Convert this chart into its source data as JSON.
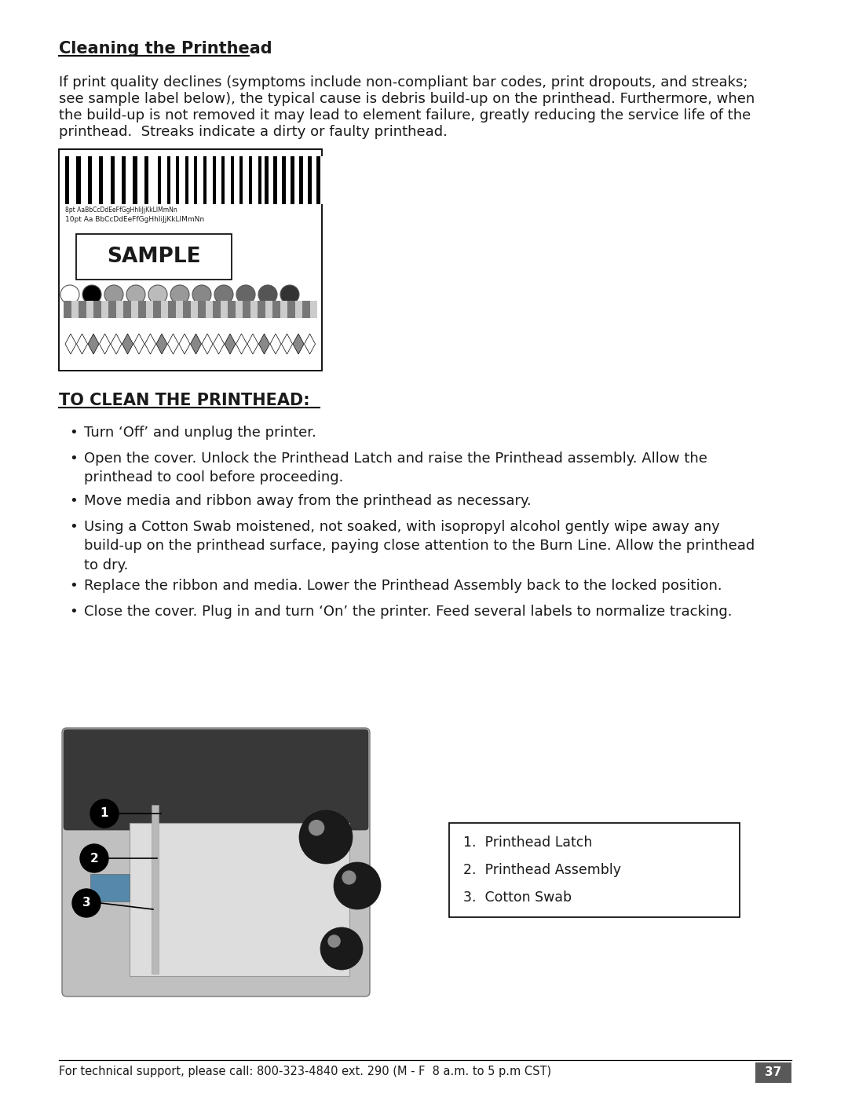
{
  "title": "Cleaning the Printhead",
  "body_text_lines": [
    "If print quality declines (symptoms include non-compliant bar codes, print dropouts, and streaks;",
    "see sample label below), the typical cause is debris build-up on the printhead. Furthermore, when",
    "the build-up is not removed it may lead to element failure, greatly reducing the service life of the",
    "printhead.  Streaks indicate a dirty or faulty printhead."
  ],
  "section2_title": "TO CLEAN THE PRINTHEAD:",
  "bullets": [
    "Turn ‘Off’ and unplug the printer.",
    "Open the cover. Unlock the Printhead Latch and raise the Printhead assembly. Allow the\nprinthead to cool before proceeding.",
    "Move media and ribbon away from the printhead as necessary.",
    "Using a Cotton Swab moistened, not soaked, with isopropyl alcohol gently wipe away any\nbuild-up on the printhead surface, paying close attention to the Burn Line. Allow the printhead\nto dry.",
    "Replace the ribbon and media. Lower the Printhead Assembly back to the locked position.",
    "Close the cover. Plug in and turn ‘On’ the printer. Feed several labels to normalize tracking."
  ],
  "legend_items": [
    "1.  Printhead Latch",
    "2.  Printhead Assembly",
    "3.  Cotton Swab"
  ],
  "footer_text": "For technical support, please call: 800-323-4840 ext. 290 (M - F  8 a.m. to 5 p.m CST)",
  "page_number": "37",
  "background_color": "#ffffff",
  "text_color": "#1a1a1a",
  "ml": 75,
  "mr": 1008
}
